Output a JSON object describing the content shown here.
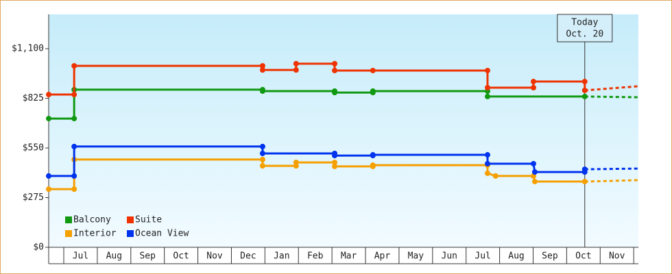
{
  "chart_data": {
    "type": "step-line",
    "categories": [
      "Jul",
      "Aug",
      "Sep",
      "Oct",
      "Nov",
      "Dec",
      "Jan",
      "Feb",
      "Mar",
      "Apr",
      "May",
      "Jun",
      "Jul",
      "Aug",
      "Sep",
      "Oct",
      "Nov"
    ],
    "xlim": [
      0.55,
      18.14
    ],
    "ylim": [
      0,
      1290
    ],
    "yticks": [
      {
        "value": 0,
        "label": "$0"
      },
      {
        "value": 275,
        "label": "$275"
      },
      {
        "value": 550,
        "label": "$550"
      },
      {
        "value": 825,
        "label": "$825"
      },
      {
        "value": 1100,
        "label": "$1,100"
      }
    ],
    "annotation": {
      "x": 16.54,
      "lines": [
        "Today",
        "Oct. 20"
      ]
    },
    "series": [
      {
        "name": "Balcony",
        "color": "#119911",
        "x": [
          0.55,
          1.31,
          1.31,
          6.93,
          6.93,
          9.08,
          9.08,
          10.22,
          10.22,
          13.64,
          13.64,
          16.54
        ],
        "values": [
          713,
          713,
          873,
          873,
          865,
          865,
          857,
          857,
          865,
          865,
          835,
          835
        ],
        "projection": {
          "x": [
            16.54,
            18.14
          ],
          "values": [
            835,
            831
          ]
        }
      },
      {
        "name": "Suite",
        "color": "#ee3300",
        "x": [
          0.55,
          1.31,
          1.31,
          6.93,
          6.93,
          7.93,
          7.93,
          9.08,
          9.08,
          10.22,
          13.64,
          13.64,
          15.01,
          15.01,
          16.54,
          16.54
        ],
        "values": [
          846,
          846,
          1005,
          1005,
          982,
          982,
          1017,
          1017,
          979,
          979,
          979,
          884,
          884,
          918,
          918,
          869
        ],
        "projection": {
          "x": [
            16.54,
            18.14
          ],
          "values": [
            869,
            892
          ]
        }
      },
      {
        "name": "Interior",
        "color": "#f5a000",
        "x": [
          0.55,
          1.31,
          1.31,
          6.93,
          6.93,
          7.93,
          7.93,
          9.08,
          9.08,
          10.22,
          10.22,
          13.64,
          13.64,
          13.88,
          15.01,
          15.05,
          16.54
        ],
        "values": [
          322,
          322,
          486,
          486,
          451,
          451,
          470,
          470,
          448,
          448,
          455,
          455,
          410,
          395,
          395,
          364,
          364
        ],
        "projection": {
          "x": [
            16.54,
            18.14
          ],
          "values": [
            364,
            372
          ]
        }
      },
      {
        "name": "Ocean View",
        "color": "#0033ee",
        "x": [
          0.55,
          1.31,
          1.31,
          6.93,
          6.93,
          9.08,
          9.08,
          10.22,
          10.22,
          13.64,
          13.64,
          15.01,
          15.05,
          16.54,
          16.54
        ],
        "values": [
          395,
          395,
          558,
          558,
          520,
          520,
          508,
          508,
          512,
          512,
          463,
          463,
          417,
          417,
          432
        ],
        "projection": {
          "x": [
            16.54,
            18.14
          ],
          "values": [
            432,
            436
          ]
        }
      }
    ]
  }
}
